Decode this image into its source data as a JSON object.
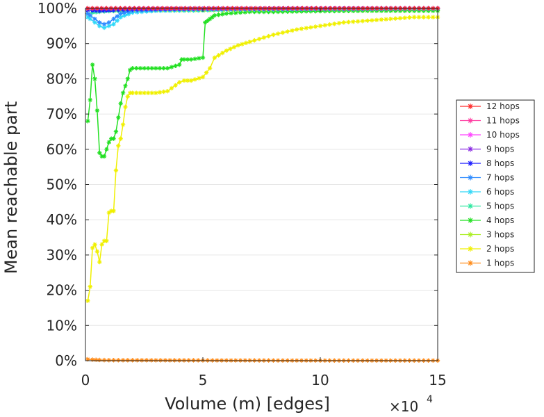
{
  "chart_data": {
    "type": "line",
    "title": "",
    "xlabel": "Volume (m) [edges]",
    "ylabel": "Mean reachable part",
    "x_multiplier_label": "×10",
    "x_multiplier_exp": "4",
    "xlim": [
      0,
      150000
    ],
    "ylim": [
      0,
      100
    ],
    "x_ticks": [
      0,
      50000,
      100000,
      150000
    ],
    "x_tick_labels": [
      "0",
      "5",
      "10",
      "15"
    ],
    "y_ticks": [
      0,
      10,
      20,
      30,
      40,
      50,
      60,
      70,
      80,
      90,
      100
    ],
    "y_tick_labels": [
      "0%",
      "10%",
      "20%",
      "30%",
      "40%",
      "50%",
      "60%",
      "70%",
      "80%",
      "90%",
      "100%"
    ],
    "grid": "horizontal",
    "legend_position": "right",
    "series": [
      {
        "name": "12 hops",
        "color": "#ff2a2a",
        "x": [
          1000,
          150000
        ],
        "y": [
          100,
          100
        ]
      },
      {
        "name": "11 hops",
        "color": "#ff3aa0",
        "x": [
          1000,
          150000
        ],
        "y": [
          100,
          100
        ]
      },
      {
        "name": "10 hops",
        "color": "#ff44ff",
        "x": [
          1000,
          150000
        ],
        "y": [
          100,
          100
        ]
      },
      {
        "name": "9 hops",
        "color": "#8a2be2",
        "x": [
          1000,
          50000,
          150000
        ],
        "y": [
          99.9,
          99.9,
          100
        ]
      },
      {
        "name": "8 hops",
        "color": "#1a1aff",
        "x": [
          1000,
          3000,
          6000,
          9000,
          12000,
          20000,
          50000,
          150000
        ],
        "y": [
          99.5,
          99.4,
          99.3,
          99.4,
          99.5,
          99.7,
          99.9,
          100
        ]
      },
      {
        "name": "7 hops",
        "color": "#2e8bff",
        "x": [
          1000,
          2000,
          4000,
          6000,
          8000,
          10000,
          12000,
          15000,
          20000,
          30000,
          50000,
          150000
        ],
        "y": [
          98.5,
          98,
          97,
          96,
          95.5,
          96,
          97,
          98.5,
          99.3,
          99.6,
          99.8,
          100
        ]
      },
      {
        "name": "6 hops",
        "color": "#30d8f8",
        "x": [
          1000,
          2000,
          4000,
          6000,
          8000,
          10000,
          12000,
          15000,
          20000,
          30000,
          50000,
          150000
        ],
        "y": [
          97.5,
          97,
          96,
          95,
          94.5,
          95,
          95.5,
          97.5,
          98.8,
          99.3,
          99.6,
          99.8
        ]
      },
      {
        "name": "5 hops",
        "color": "#2ee8a0",
        "x": [
          1000,
          3000,
          6000,
          10000,
          20000,
          50000,
          52000,
          55000,
          60000,
          80000,
          100000,
          130000,
          150000
        ],
        "y": [
          98.5,
          98.8,
          99,
          99.2,
          99.3,
          99.4,
          99.5,
          99.6,
          99.7,
          99.8,
          99.8,
          99.9,
          99.9
        ]
      },
      {
        "name": "4 hops",
        "color": "#22e022",
        "x": [
          1000,
          2000,
          3000,
          4000,
          5000,
          6000,
          7000,
          8000,
          9000,
          10000,
          11000,
          12000,
          13000,
          14000,
          15000,
          16000,
          17000,
          18000,
          19000,
          20000,
          25000,
          30000,
          35000,
          40000,
          41000,
          42000,
          45000,
          50000,
          51000,
          52000,
          53000,
          54000,
          55000,
          60000,
          70000,
          80000,
          100000,
          120000,
          150000
        ],
        "y": [
          68,
          74,
          84,
          80,
          71,
          59,
          58,
          58,
          60,
          62,
          63,
          63,
          65,
          69,
          73,
          76,
          78,
          80,
          82.5,
          83,
          83,
          83,
          83,
          84,
          85.5,
          85.5,
          85.5,
          86,
          96,
          96.5,
          97,
          97.5,
          98,
          98.5,
          99,
          99,
          99.2,
          99.3,
          99.3
        ]
      },
      {
        "name": "3 hops",
        "color": "#aaee22",
        "x": [
          1000,
          150000
        ],
        "y": [
          99.5,
          99.5
        ]
      },
      {
        "name": "2 hops",
        "color": "#f0f000",
        "x": [
          1000,
          2000,
          3000,
          4000,
          5000,
          6000,
          7000,
          8000,
          9000,
          10000,
          11000,
          12000,
          13000,
          14000,
          15000,
          16000,
          17000,
          18000,
          19000,
          20000,
          25000,
          30000,
          35000,
          40000,
          42000,
          45000,
          50000,
          53000,
          55000,
          60000,
          65000,
          70000,
          80000,
          90000,
          100000,
          110000,
          120000,
          130000,
          140000,
          150000
        ],
        "y": [
          17,
          21,
          32,
          33,
          31,
          28,
          33,
          34,
          34,
          42,
          42.5,
          42.5,
          54,
          61,
          63,
          67,
          72,
          75,
          76,
          76,
          76,
          76,
          76.5,
          79,
          79.5,
          79.5,
          80.5,
          83,
          86,
          88,
          89.5,
          90.5,
          92.5,
          94,
          95,
          96,
          96.5,
          97,
          97.5,
          97.5
        ]
      },
      {
        "name": "1 hops",
        "color": "#ff8c1a",
        "x": [
          1000,
          3000,
          6000,
          10000,
          50000,
          100000,
          150000
        ],
        "y": [
          0.4,
          0.3,
          0.2,
          0.15,
          0.1,
          0.05,
          0.05
        ]
      }
    ]
  }
}
